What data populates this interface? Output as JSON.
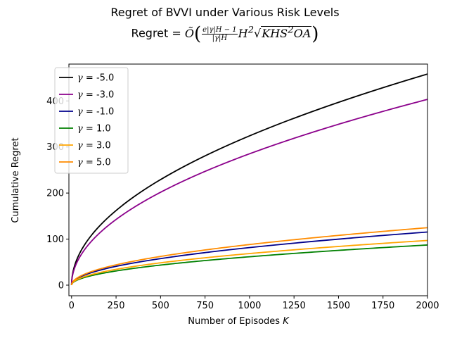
{
  "chart_data": {
    "type": "line",
    "title": "Regret of BVVI under Various Risk Levels",
    "subtitle_prefix": "Regret = ",
    "subtitle_formula": {
      "otilde": "Õ",
      "frac_num": "e|γ|H − 1",
      "frac_den": "|γ|H",
      "h_term": "H",
      "h_exp": "2",
      "sqrt_sign": "√",
      "sqrt_body_pre": "KHS",
      "sqrt_exp": "2",
      "sqrt_body_post": "OA"
    },
    "xlabel": "Number of Episodes K",
    "ylabel": "Cumulative Regret",
    "xlim": [
      -15,
      2000
    ],
    "ylim": [
      -23,
      480
    ],
    "xticks": [
      0,
      250,
      500,
      750,
      1000,
      1250,
      1500,
      1750,
      2000
    ],
    "yticks": [
      0,
      100,
      200,
      300,
      400
    ],
    "grid": false,
    "legend_position": "upper left",
    "series": [
      {
        "name": "γ = -5.0",
        "color": "#000000",
        "coef": 10.25,
        "y_at_2000": 458
      },
      {
        "name": "γ = -3.0",
        "color": "#8b008b",
        "coef": 9.02,
        "y_at_2000": 403
      },
      {
        "name": "γ = -1.0",
        "color": "#00008b",
        "coef": 2.58,
        "y_at_2000": 115
      },
      {
        "name": "γ = 1.0",
        "color": "#008000",
        "coef": 1.95,
        "y_at_2000": 87
      },
      {
        "name": "γ = 3.0",
        "color": "#ffa500",
        "coef": 2.17,
        "y_at_2000": 97
      },
      {
        "name": "γ = 5.0",
        "color": "#ff8c00",
        "coef": 2.79,
        "y_at_2000": 125
      }
    ]
  }
}
